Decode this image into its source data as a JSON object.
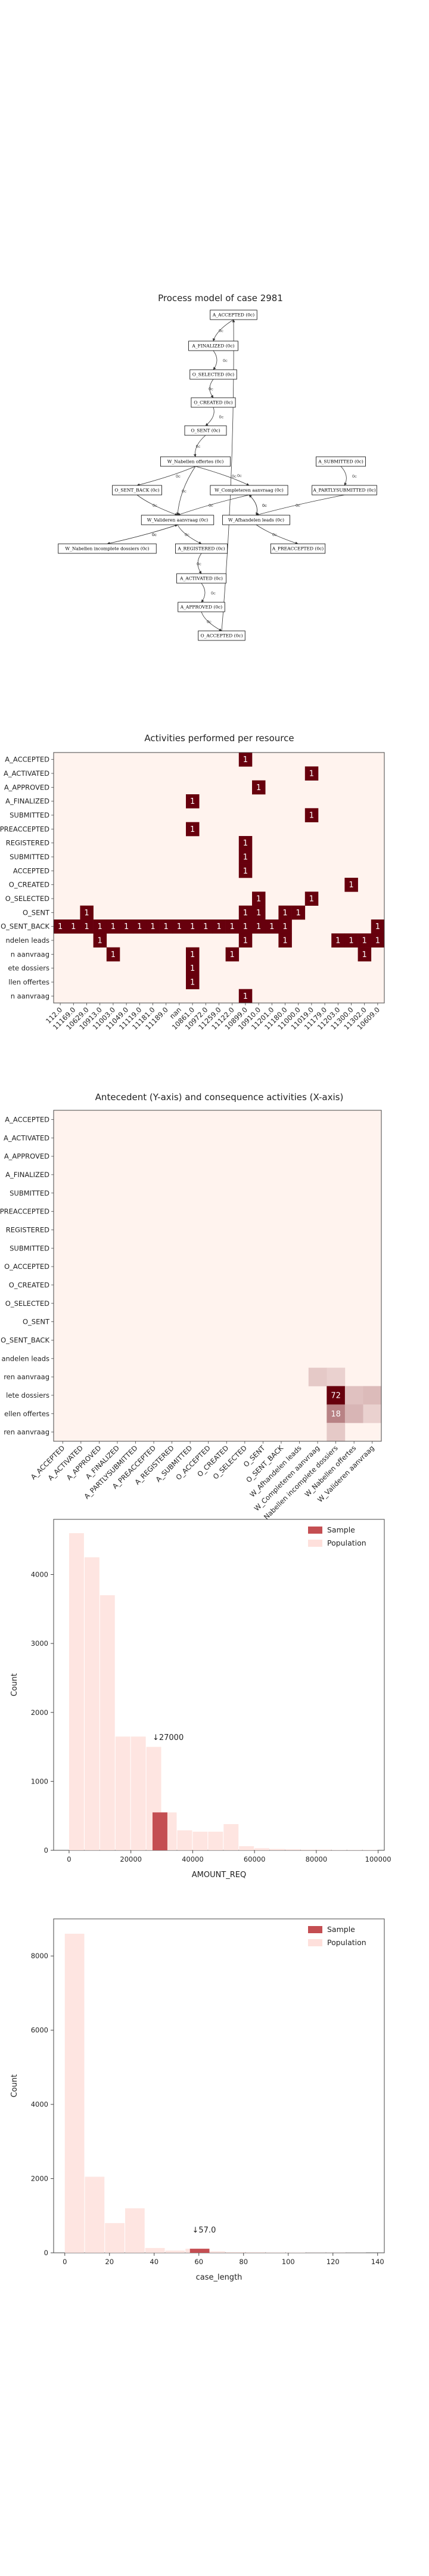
{
  "process_model": {
    "title": "Process model of case 2981",
    "nodes": [
      {
        "id": "a_acc",
        "label": "A_ACCEPTED (0c)"
      },
      {
        "id": "a_fin",
        "label": "A_FINALIZED (0c)"
      },
      {
        "id": "o_sel",
        "label": "O_SELECTED (0c)"
      },
      {
        "id": "o_cre",
        "label": "O_CREATED (0c)"
      },
      {
        "id": "o_sent",
        "label": "O_SENT (0c)"
      },
      {
        "id": "w_nab",
        "label": "W_Nabellen offertes (0c)"
      },
      {
        "id": "a_sub",
        "label": "A_SUBMITTED (0c)"
      },
      {
        "id": "o_sb",
        "label": "O_SENT_BACK (0c)"
      },
      {
        "id": "w_comp",
        "label": "W_Completeren aanvraag (0c)"
      },
      {
        "id": "a_ps",
        "label": "A_PARTLYSUBMITTED (0c)"
      },
      {
        "id": "w_val",
        "label": "W_Valideren aanvraag (0c)"
      },
      {
        "id": "w_afh",
        "label": "W_Afhandelen leads (0c)"
      },
      {
        "id": "w_nab2",
        "label": "W_Nabellen incomplete dossiers (0c)"
      },
      {
        "id": "a_reg",
        "label": "A_REGISTERED (0c)"
      },
      {
        "id": "a_pre",
        "label": "A_PREACCEPTED (0c)"
      },
      {
        "id": "a_act",
        "label": "A_ACTIVATED (0c)"
      },
      {
        "id": "a_app",
        "label": "A_APPROVED (0c)"
      },
      {
        "id": "o_acc",
        "label": "O_ACCEPTED (0c)"
      }
    ],
    "edges": [
      {
        "from": "a_acc",
        "to": "a_fin",
        "label": "0c"
      },
      {
        "from": "a_fin",
        "to": "o_sel",
        "label": "0c"
      },
      {
        "from": "o_sel",
        "to": "o_cre",
        "label": "0c"
      },
      {
        "from": "o_cre",
        "to": "o_sent",
        "label": "0c"
      },
      {
        "from": "o_sent",
        "to": "w_nab",
        "label": "0c"
      },
      {
        "from": "w_nab",
        "to": "o_sb",
        "label": "0c"
      },
      {
        "from": "w_nab",
        "to": "w_val",
        "label": "0c"
      },
      {
        "from": "w_nab",
        "to": "w_comp",
        "label": "0c"
      },
      {
        "from": "o_sb",
        "to": "w_val",
        "label": "0c"
      },
      {
        "from": "a_sub",
        "to": "a_ps",
        "label": "0c"
      },
      {
        "from": "a_ps",
        "to": "w_afh",
        "label": "0c"
      },
      {
        "from": "w_comp",
        "to": "w_afh",
        "label": "0c"
      },
      {
        "from": "w_comp",
        "to": "w_val",
        "label": "0c"
      },
      {
        "from": "w_afh",
        "to": "w_comp",
        "label": "0c"
      },
      {
        "from": "w_afh",
        "to": "a_pre",
        "label": "0c"
      },
      {
        "from": "w_val",
        "to": "w_nab2",
        "label": "0c"
      },
      {
        "from": "w_val",
        "to": "a_reg",
        "label": "0c"
      },
      {
        "from": "w_nab2",
        "to": "w_val",
        "label": "0c"
      },
      {
        "from": "a_reg",
        "to": "a_act",
        "label": "0c"
      },
      {
        "from": "a_act",
        "to": "a_app",
        "label": "0c"
      },
      {
        "from": "a_app",
        "to": "o_acc",
        "label": "0c"
      },
      {
        "from": "o_acc",
        "to": "a_acc",
        "label": "0c"
      }
    ]
  },
  "chart_data": [
    {
      "type": "heatmap",
      "title": "Activities performed per resource",
      "rows": [
        "A_ACCEPTED",
        "A_ACTIVATED",
        "A_APPROVED",
        "A_FINALIZED",
        "A_PARTLYSUBMITTED",
        "A_PREACCEPTED",
        "A_REGISTERED",
        "A_SUBMITTED",
        "O_ACCEPTED",
        "O_CREATED",
        "O_SELECTED",
        "O_SENT",
        "O_SENT_BACK",
        "W_Afhandelen leads",
        "W_Completeren aanvraag",
        "W_Nabellen incomplete dossiers",
        "W_Nabellen offertes",
        "W_Valideren aanvraag"
      ],
      "row_tick_labels": [
        "A_ACCEPTED",
        "A_ACTIVATED",
        "A_APPROVED",
        "A_FINALIZED",
        "SUBMITTED",
        "PREACCEPTED",
        "REGISTERED",
        "SUBMITTED",
        "ACCEPTED",
        "O_CREATED",
        "O_SELECTED",
        "O_SENT",
        "O_SENT_BACK",
        "ndelen leads",
        "n aanvraag",
        "ete dossiers",
        "llen offertes",
        "n aanvraag"
      ],
      "columns": [
        "112.0",
        "11169.0",
        "10629.0",
        "10913.0",
        "11003.0",
        "11049.0",
        "11119.0",
        "11181.0",
        "11189.0",
        "nan",
        "10861.0",
        "10972.0",
        "11259.0",
        "11122.0",
        "10899.0",
        "10910.0",
        "11201.0",
        "11180.0",
        "11000.0",
        "11019.0",
        "11179.0",
        "11203.0",
        "11300.0",
        "11302.0",
        "10609.0"
      ],
      "cells": [
        {
          "row": 0,
          "col": 14,
          "value": 1
        },
        {
          "row": 1,
          "col": 19,
          "value": 1
        },
        {
          "row": 2,
          "col": 15,
          "value": 1
        },
        {
          "row": 3,
          "col": 10,
          "value": 1
        },
        {
          "row": 4,
          "col": 19,
          "value": 1
        },
        {
          "row": 5,
          "col": 10,
          "value": 1
        },
        {
          "row": 6,
          "col": 14,
          "value": 1
        },
        {
          "row": 7,
          "col": 14,
          "value": 1
        },
        {
          "row": 8,
          "col": 14,
          "value": 1
        },
        {
          "row": 9,
          "col": 22,
          "value": 1
        },
        {
          "row": 10,
          "col": 15,
          "value": 1
        },
        {
          "row": 10,
          "col": 19,
          "value": 1
        },
        {
          "row": 11,
          "col": 2,
          "value": 1
        },
        {
          "row": 11,
          "col": 14,
          "value": 1
        },
        {
          "row": 11,
          "col": 15,
          "value": 1
        },
        {
          "row": 11,
          "col": 17,
          "value": 1
        },
        {
          "row": 11,
          "col": 18,
          "value": 1
        },
        {
          "row": 12,
          "col": 0,
          "value": 1
        },
        {
          "row": 12,
          "col": 1,
          "value": 1
        },
        {
          "row": 12,
          "col": 2,
          "value": 1
        },
        {
          "row": 12,
          "col": 3,
          "value": 1
        },
        {
          "row": 12,
          "col": 4,
          "value": 1
        },
        {
          "row": 12,
          "col": 5,
          "value": 1
        },
        {
          "row": 12,
          "col": 6,
          "value": 1
        },
        {
          "row": 12,
          "col": 7,
          "value": 1
        },
        {
          "row": 12,
          "col": 8,
          "value": 1
        },
        {
          "row": 12,
          "col": 9,
          "value": 1
        },
        {
          "row": 12,
          "col": 10,
          "value": 1
        },
        {
          "row": 12,
          "col": 11,
          "value": 1
        },
        {
          "row": 12,
          "col": 12,
          "value": 1
        },
        {
          "row": 12,
          "col": 13,
          "value": 1
        },
        {
          "row": 12,
          "col": 14,
          "value": 1
        },
        {
          "row": 12,
          "col": 15,
          "value": 1
        },
        {
          "row": 12,
          "col": 16,
          "value": 1
        },
        {
          "row": 12,
          "col": 17,
          "value": 1
        },
        {
          "row": 12,
          "col": 24,
          "value": 1
        },
        {
          "row": 13,
          "col": 3,
          "value": 1
        },
        {
          "row": 13,
          "col": 14,
          "value": 1
        },
        {
          "row": 13,
          "col": 17,
          "value": 1
        },
        {
          "row": 13,
          "col": 21,
          "value": 1
        },
        {
          "row": 13,
          "col": 22,
          "value": 1
        },
        {
          "row": 13,
          "col": 23,
          "value": 1
        },
        {
          "row": 13,
          "col": 24,
          "value": 1
        },
        {
          "row": 14,
          "col": 4,
          "value": 1
        },
        {
          "row": 14,
          "col": 10,
          "value": 1
        },
        {
          "row": 14,
          "col": 13,
          "value": 1
        },
        {
          "row": 14,
          "col": 23,
          "value": 1
        },
        {
          "row": 15,
          "col": 10,
          "value": 1
        },
        {
          "row": 16,
          "col": 10,
          "value": 1
        },
        {
          "row": 17,
          "col": 14,
          "value": 1
        }
      ],
      "colors": {
        "empty": "#fff3ee",
        "max": "#67000d",
        "frame": "#444444"
      }
    },
    {
      "type": "heatmap",
      "title": "Antecedent (Y-axis) and consequence activities (X-axis)",
      "rows": [
        "A_ACCEPTED",
        "A_ACTIVATED",
        "A_APPROVED",
        "A_FINALIZED",
        "A_PARTLYSUBMITTED",
        "A_PREACCEPTED",
        "A_REGISTERED",
        "A_SUBMITTED",
        "O_ACCEPTED",
        "O_CREATED",
        "O_SELECTED",
        "O_SENT",
        "O_SENT_BACK",
        "W_Afhandelen leads",
        "W_Completeren aanvraag",
        "W_Nabellen incomplete dossiers",
        "W_Nabellen offertes",
        "W_Valideren aanvraag"
      ],
      "row_tick_labels": [
        "A_ACCEPTED",
        "A_ACTIVATED",
        "A_APPROVED",
        "A_FINALIZED",
        "SUBMITTED",
        "PREACCEPTED",
        "REGISTERED",
        "SUBMITTED",
        "O_ACCEPTED",
        "O_CREATED",
        "O_SELECTED",
        "O_SENT",
        "O_SENT_BACK",
        "andelen leads",
        "ren aanvraag",
        "lete dossiers",
        "ellen offertes",
        "ren aanvraag"
      ],
      "columns": [
        "A_ACCEPTED",
        "A_ACTIVATED",
        "A_APPROVED",
        "A_FINALIZED",
        "A_PARTLYSUBMITTED",
        "A_PREACCEPTED",
        "A_REGISTERED",
        "A_SUBMITTED",
        "O_ACCEPTED",
        "O_CREATED",
        "O_SELECTED",
        "O_SENT",
        "O_SENT_BACK",
        "W_Afhandelen leads",
        "W_Completeren aanvraag",
        "W_Nabellen incomplete dossiers",
        "W_Nabellen offertes",
        "W_Valideren aanvraag"
      ],
      "col_tick_labels": [
        "A_ACCEPTED",
        "A_ACTIVATED",
        "A_APPROVED",
        "A_FINALIZED",
        "A_PARTLYSUBMITTED",
        "A_PREACCEPTED",
        "A_REGISTERED",
        "A_SUBMITTED",
        "O_ACCEPTED",
        "O_CREATED",
        "O_SELECTED",
        "O_SENT",
        "O_SENT_BACK",
        "W_Afhandelen leads",
        "W_Completeren aanvraag",
        "W_Nabellen incomplete dossiers",
        "W_Nabellen offertes",
        "W_Valideren aanvraag"
      ],
      "cells": [
        {
          "row": 14,
          "col": 14,
          "value": 3
        },
        {
          "row": 14,
          "col": 15,
          "value": 2
        },
        {
          "row": 15,
          "col": 15,
          "value": 72,
          "label": "72"
        },
        {
          "row": 15,
          "col": 16,
          "value": 4
        },
        {
          "row": 15,
          "col": 17,
          "value": 5
        },
        {
          "row": 16,
          "col": 15,
          "value": 18,
          "label": "18"
        },
        {
          "row": 16,
          "col": 16,
          "value": 6
        },
        {
          "row": 16,
          "col": 17,
          "value": 2
        },
        {
          "row": 17,
          "col": 15,
          "value": 3
        }
      ],
      "max_value": 72,
      "colors": {
        "empty": "#fff3ee",
        "max": "#67000d",
        "frame": "#444444"
      }
    },
    {
      "type": "bar",
      "title": "",
      "xlabel": "AMOUNT_REQ",
      "ylabel": "Count",
      "xlim": [
        -5000,
        102000
      ],
      "ylim": [
        0,
        4800
      ],
      "x_ticks": [
        0,
        20000,
        40000,
        60000,
        80000,
        100000
      ],
      "y_ticks": [
        0,
        1000,
        2000,
        3000,
        4000
      ],
      "series": [
        {
          "name": "Population",
          "bins": [
            [
              0,
              5000,
              4600
            ],
            [
              5000,
              10000,
              4250
            ],
            [
              10000,
              15000,
              3700
            ],
            [
              15000,
              20000,
              1650
            ],
            [
              20000,
              25000,
              1650
            ],
            [
              25000,
              30000,
              1500
            ],
            [
              30000,
              35000,
              550
            ],
            [
              35000,
              40000,
              290
            ],
            [
              40000,
              45000,
              270
            ],
            [
              45000,
              50000,
              270
            ],
            [
              50000,
              55000,
              380
            ],
            [
              55000,
              60000,
              60
            ],
            [
              60000,
              65000,
              30
            ],
            [
              65000,
              70000,
              20
            ],
            [
              70000,
              75000,
              15
            ],
            [
              75000,
              80000,
              10
            ],
            [
              80000,
              85000,
              10
            ],
            [
              85000,
              90000,
              5
            ],
            [
              90000,
              95000,
              5
            ],
            [
              95000,
              100000,
              5
            ]
          ],
          "color": "#fee0dc"
        },
        {
          "name": "Sample",
          "bins": [
            [
              27000,
              32000,
              550
            ]
          ],
          "color": "#c44e52"
        }
      ],
      "annotation": {
        "text": "↓27000",
        "x": 27000,
        "y": 1600
      }
    },
    {
      "type": "bar",
      "title": "",
      "xlabel": "case_length",
      "ylabel": "Count",
      "xlim": [
        -5,
        143
      ],
      "ylim": [
        0,
        9000
      ],
      "x_ticks": [
        0,
        20,
        40,
        60,
        80,
        100,
        120,
        140
      ],
      "y_ticks": [
        0,
        2000,
        4000,
        6000,
        8000
      ],
      "series": [
        {
          "name": "Population",
          "bins": [
            [
              0,
              9,
              8600
            ],
            [
              9,
              18,
              2050
            ],
            [
              18,
              27,
              800
            ],
            [
              27,
              36,
              1200
            ],
            [
              36,
              45,
              130
            ],
            [
              45,
              54,
              60
            ],
            [
              54,
              63,
              110
            ],
            [
              63,
              72,
              40
            ],
            [
              72,
              81,
              20
            ],
            [
              81,
              90,
              15
            ],
            [
              90,
              99,
              10
            ],
            [
              99,
              108,
              8
            ],
            [
              108,
              117,
              5
            ],
            [
              117,
              126,
              5
            ],
            [
              126,
              135,
              3
            ]
          ],
          "color": "#fee0dc"
        },
        {
          "name": "Sample",
          "bins": [
            [
              56,
              65,
              110
            ]
          ],
          "color": "#c44e52"
        }
      ],
      "annotation": {
        "text": "↓57.0",
        "x": 57,
        "y": 550
      }
    }
  ]
}
